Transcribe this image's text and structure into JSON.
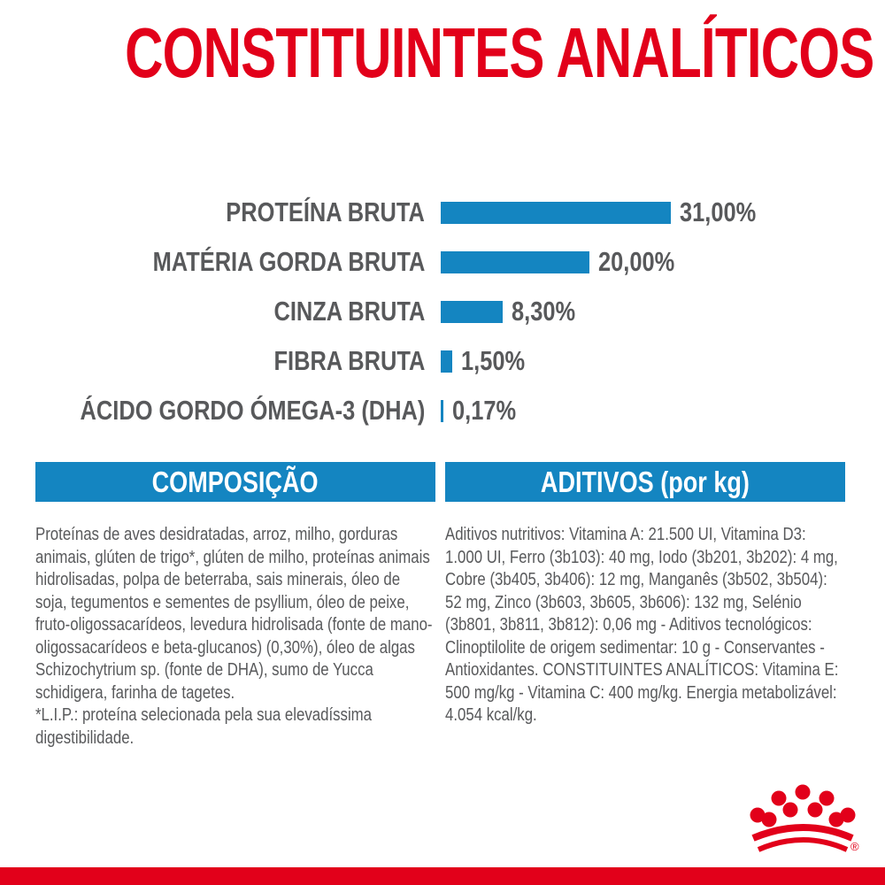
{
  "title": "CONSTITUINTES ANALÍTICOS",
  "colors": {
    "brand_red": "#e2001a",
    "accent_blue": "#1485c1",
    "text_gray": "#58595b"
  },
  "chart_data": {
    "type": "bar",
    "orientation": "horizontal",
    "title": "CONSTITUINTES ANALÍTICOS",
    "categories": [
      "PROTEÍNA BRUTA",
      "MATÉRIA GORDA BRUTA",
      "CINZA BRUTA",
      "FIBRA BRUTA",
      "ÁCIDO GORDO ÓMEGA-3 (DHA)"
    ],
    "values": [
      31.0,
      20.0,
      8.3,
      1.5,
      0.17
    ],
    "value_labels": [
      "31,00%",
      "20,00%",
      "8,30%",
      "1,50%",
      "0,17%"
    ],
    "unit": "%",
    "xlim": [
      0,
      31
    ],
    "grid": false,
    "legend": false,
    "bar_color": "#1485c1",
    "label_color": "#58595b"
  },
  "sections": {
    "composicao": {
      "header": "COMPOSIÇÃO",
      "body": "Proteínas de aves desidratadas, arroz, milho, gorduras animais, glúten de trigo*, glúten de milho, proteínas animais hidrolisadas, polpa de beterraba, sais minerais, óleo de soja, tegumentos e sementes de psyllium, óleo de peixe, fruto-oligossacarídeos, levedura hidrolisada (fonte de mano-oligossacarídeos e beta-glucanos) (0,30%), óleo de algas Schizochytrium sp. (fonte de DHA), sumo de Yucca schidigera, farinha de tagetes.",
      "footnote": "*L.I.P.: proteína selecionada pela sua elevadíssima digestibilidade."
    },
    "aditivos": {
      "header": "ADITIVOS (por kg)",
      "body": "Aditivos nutritivos: Vitamina A: 21.500 UI, Vitamina D3: 1.000 UI, Ferro (3b103): 40 mg, Iodo (3b201, 3b202): 4 mg, Cobre (3b405, 3b406): 12 mg, Manganês (3b502, 3b504): 52 mg, Zinco (3b603, 3b605, 3b606): 132 mg, Selénio (3b801, 3b811, 3b812): 0,06 mg - Aditivos tecnológicos: Clinoptilolite de origem sedimentar: 10 g - Conservantes - Antioxidantes. CONSTITUINTES ANALÍTICOS: Vitamina E: 500 mg/kg - Vitamina C: 400 mg/kg. Energia metabolizável: 4.054 kcal/kg."
    }
  },
  "logo": {
    "registered_mark": "®"
  }
}
